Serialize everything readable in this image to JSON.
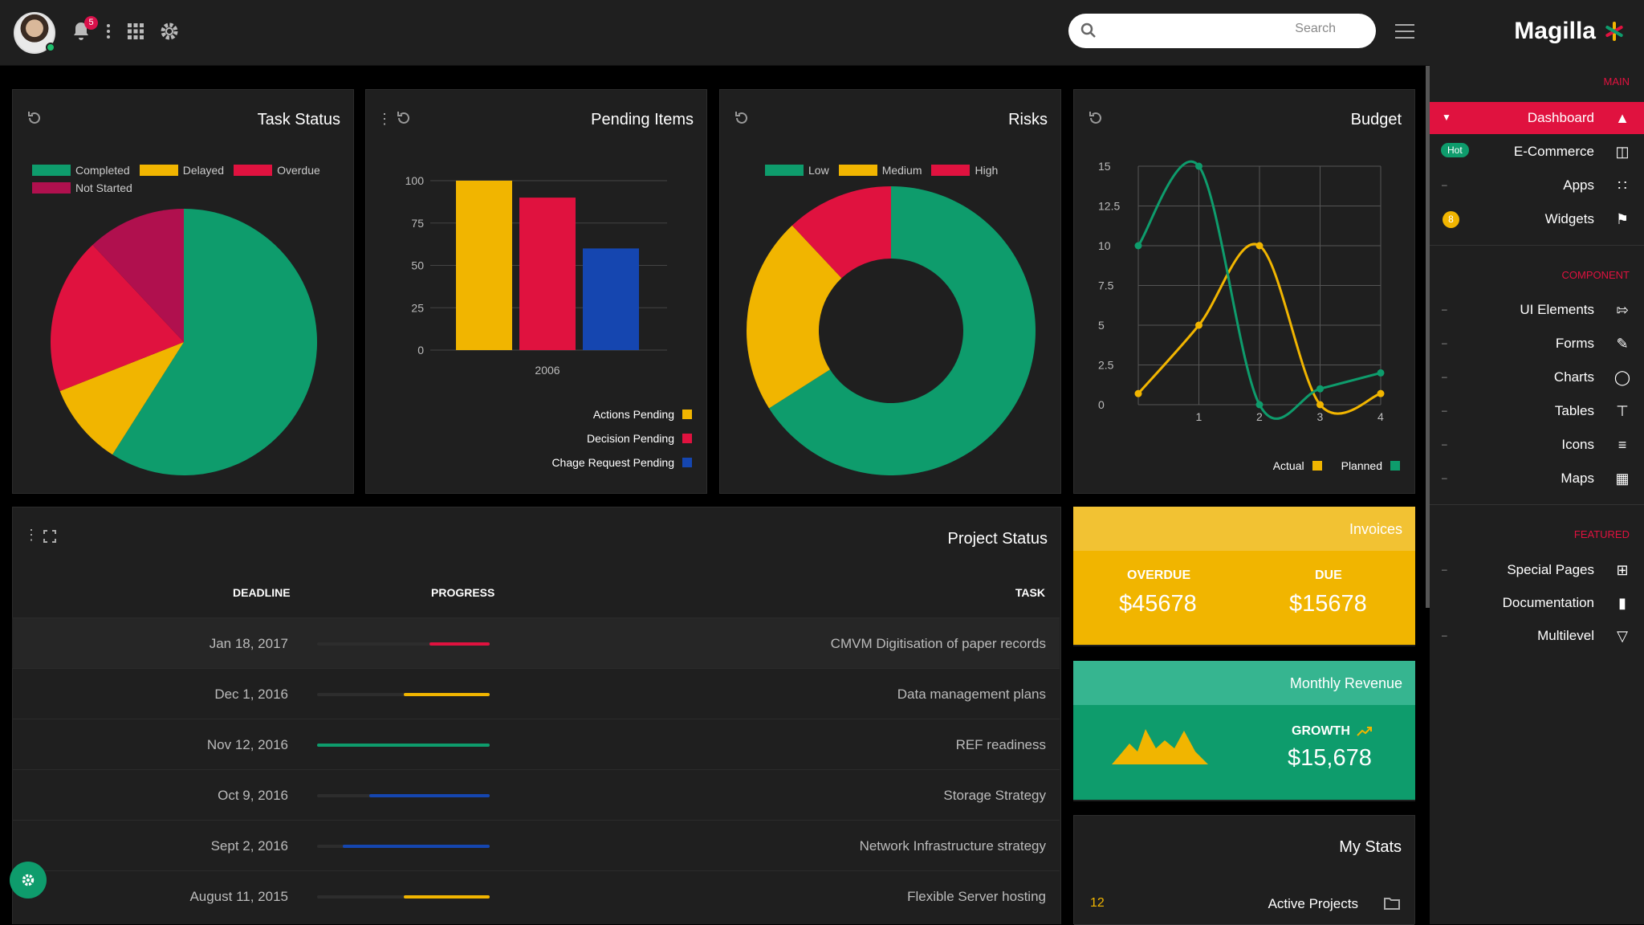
{
  "header": {
    "notification_count": "5",
    "search": {
      "placeholder": "Search"
    }
  },
  "brand": {
    "name": "Magilla"
  },
  "sidebar": {
    "sections": [
      {
        "title": "MAIN",
        "items": [
          {
            "label": "Dashboard",
            "icon": "dashboard-icon",
            "active": true
          },
          {
            "label": "E-Commerce",
            "icon": "basket-icon",
            "badge": "Hot"
          },
          {
            "label": "Apps",
            "icon": "apps-grid-icon"
          },
          {
            "label": "Widgets",
            "icon": "flag-icon",
            "badge": "8"
          }
        ]
      },
      {
        "title": "COMPONENT",
        "items": [
          {
            "label": "UI Elements",
            "icon": "login-icon"
          },
          {
            "label": "Forms",
            "icon": "pencil-icon"
          },
          {
            "label": "Charts",
            "icon": "circle-chart-icon"
          },
          {
            "label": "Tables",
            "icon": "table-icon"
          },
          {
            "label": "Icons",
            "icon": "sliders-icon"
          },
          {
            "label": "Maps",
            "icon": "map-icon"
          }
        ]
      },
      {
        "title": "FEATURED",
        "items": [
          {
            "label": "Special Pages",
            "icon": "plus-box-icon"
          },
          {
            "label": "Documentation",
            "icon": "doc-icon"
          },
          {
            "label": "Multilevel",
            "icon": "filter-icon"
          }
        ]
      }
    ]
  },
  "cards": {
    "task_status": {
      "title": "Task Status"
    },
    "pending_items": {
      "title": "Pending Items"
    },
    "risks": {
      "title": "Risks"
    },
    "budget": {
      "title": "Budget"
    }
  },
  "chart_data": [
    {
      "type": "pie",
      "title": "Task Status",
      "labels": [
        "Completed",
        "Delayed",
        "Overdue",
        "Not Started"
      ],
      "values": [
        59,
        10,
        19,
        12
      ],
      "colors": [
        "#0e9c6c",
        "#f1b500",
        "#e0123f",
        "#b0104e"
      ],
      "legend": "top"
    },
    {
      "type": "bar",
      "title": "Pending Items",
      "categories": [
        "2006"
      ],
      "series": [
        {
          "name": "Actions Pending",
          "values": [
            100
          ],
          "color": "#f1b500"
        },
        {
          "name": "Decision Pending",
          "values": [
            90
          ],
          "color": "#e0123f"
        },
        {
          "name": "Chage Request Pending",
          "values": [
            60
          ],
          "color": "#1546b0"
        }
      ],
      "yticks": [
        0,
        25,
        50,
        75,
        100
      ],
      "ylim": [
        0,
        100
      ],
      "legend": "bottom-right"
    },
    {
      "type": "pie",
      "donut": true,
      "title": "Risks",
      "labels": [
        "Low",
        "Medium",
        "High"
      ],
      "values": [
        66,
        22,
        12
      ],
      "colors": [
        "#0e9c6c",
        "#f1b500",
        "#e0123f"
      ],
      "legend": "top"
    },
    {
      "type": "line",
      "title": "Budget",
      "x": [
        0,
        1,
        2,
        3,
        4
      ],
      "xticks": [
        "1",
        "2",
        "3",
        "4"
      ],
      "yticks": [
        "0",
        "2.5",
        "5",
        "7.5",
        "10",
        "12.5",
        "15"
      ],
      "ylim": [
        0,
        15
      ],
      "grid": true,
      "series": [
        {
          "name": "Actual",
          "values": [
            0.7,
            5,
            10,
            0,
            0.7
          ],
          "color": "#f1b500"
        },
        {
          "name": "Planned",
          "values": [
            10,
            15,
            0,
            1,
            2
          ],
          "color": "#0e9c6c"
        }
      ],
      "legend": "bottom-right"
    }
  ],
  "project_status": {
    "title": "Project Status",
    "columns": {
      "deadline": "DEADLINE",
      "progress": "PROGRESS",
      "task": "TASK"
    },
    "rows": [
      {
        "deadline": "Jan 18, 2017",
        "progress": 0.35,
        "color": "#e0123f",
        "task": "CMVM Digitisation of paper records"
      },
      {
        "deadline": "Dec 1, 2016",
        "progress": 0.5,
        "color": "#f1b500",
        "task": "Data management plans"
      },
      {
        "deadline": "Nov 12, 2016",
        "progress": 1.0,
        "color": "#0e9c6c",
        "task": "REF readiness"
      },
      {
        "deadline": "Oct 9, 2016",
        "progress": 0.7,
        "color": "#1546b0",
        "task": "Storage Strategy"
      },
      {
        "deadline": "Sept 2, 2016",
        "progress": 0.85,
        "color": "#1546b0",
        "task": "Network Infrastructure strategy"
      },
      {
        "deadline": "August 11, 2015",
        "progress": 0.5,
        "color": "#f1b500",
        "task": "Flexible Server hosting"
      }
    ]
  },
  "invoices": {
    "title": "Invoices",
    "overdue_label": "OVERDUE",
    "overdue_value": "$45678",
    "due_label": "DUE",
    "due_value": "$15678"
  },
  "revenue": {
    "title": "Monthly Revenue",
    "growth_label": "GROWTH",
    "growth_value": "$15,678"
  },
  "my_stats": {
    "title": "My Stats",
    "items": [
      {
        "count": "12",
        "label": "Active Projects",
        "icon": "folder-icon"
      }
    ]
  }
}
